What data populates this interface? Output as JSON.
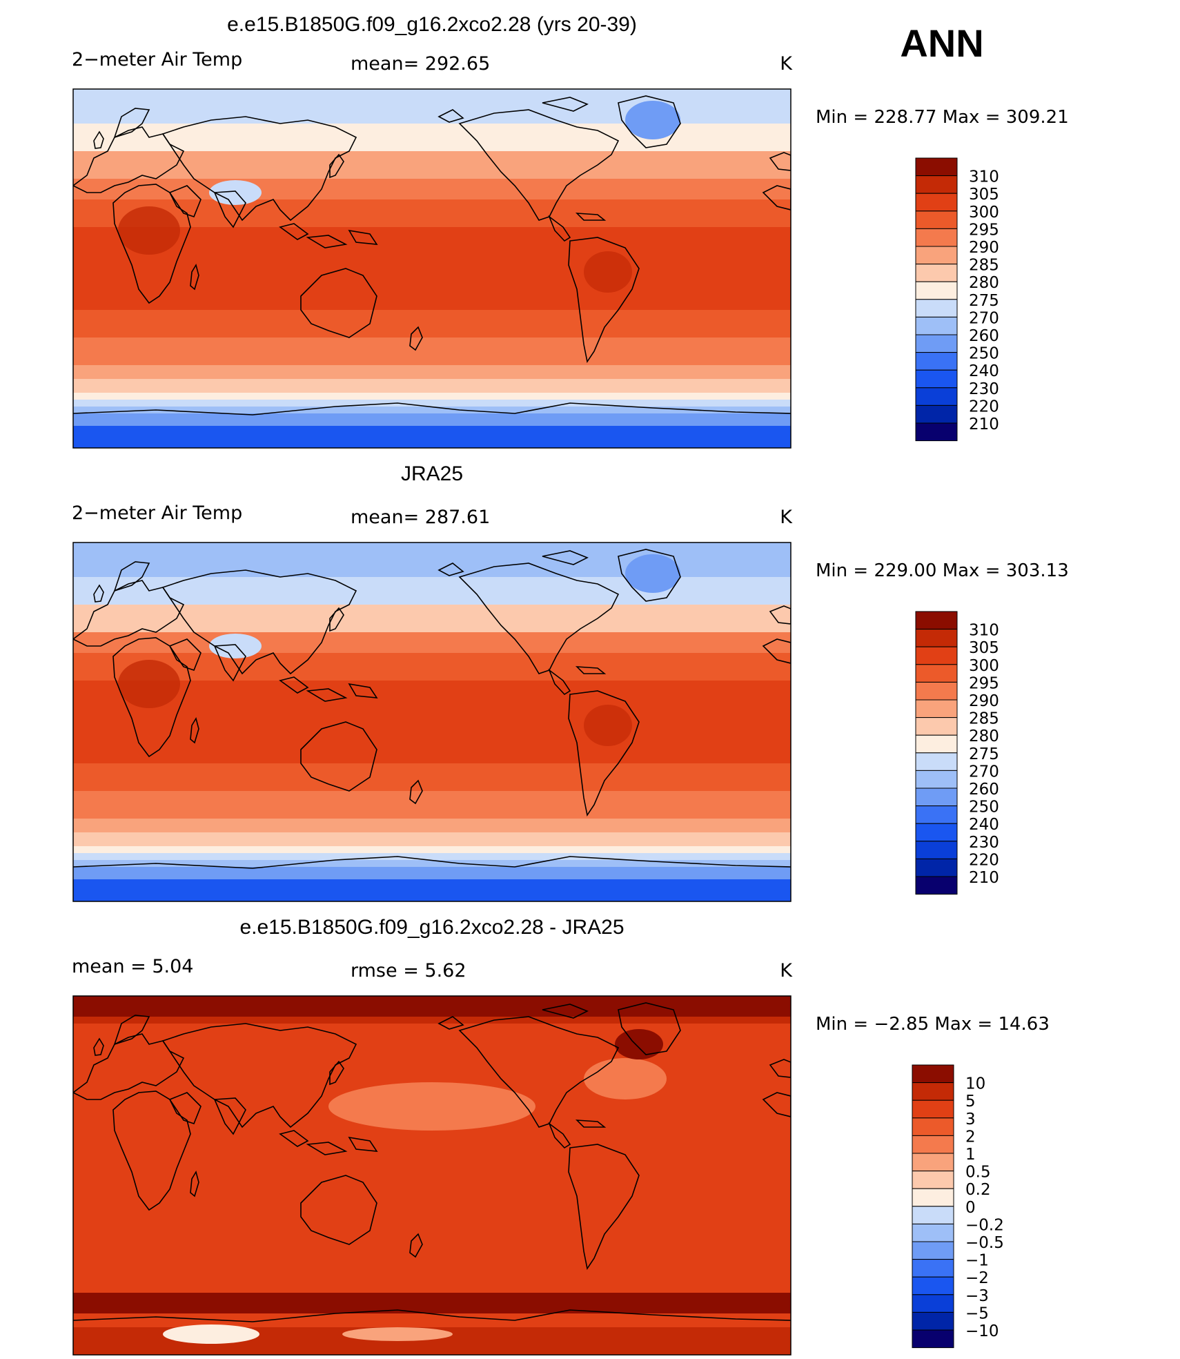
{
  "season": "ANN",
  "colors": {
    "temp_scale": [
      "#08006e",
      "#0025a8",
      "#0a3fd8",
      "#1a56f0",
      "#3a72f5",
      "#6f9cf5",
      "#9ebff7",
      "#c9dcf9",
      "#fdeee0",
      "#fcc9ad",
      "#f9a37c",
      "#f47a4d",
      "#ec5a2a",
      "#e14015",
      "#c42a06",
      "#8b0d00"
    ],
    "diff_scale": [
      "#08006e",
      "#0025a8",
      "#0a3fd8",
      "#1a56f0",
      "#3a72f5",
      "#6f9cf5",
      "#9ebff7",
      "#c9dcf9",
      "#fdeee0",
      "#fcc9ad",
      "#f9a37c",
      "#f47a4d",
      "#ec5a2a",
      "#e14015",
      "#c42a06",
      "#8b0d00"
    ],
    "coastline": "#000000"
  },
  "panels": [
    {
      "title": "e.e15.B1850G.f09_g16.2xco2.28 (yrs 20-39)",
      "left_label": "2−meter Air Temp",
      "mid_label": "mean= 292.65",
      "units": "K",
      "minmax": "Min  =  228.77  Max  =  309.21",
      "legend_labels": [
        "310",
        "305",
        "300",
        "295",
        "290",
        "285",
        "280",
        "275",
        "270",
        "260",
        "250",
        "240",
        "230",
        "220",
        "210"
      ]
    },
    {
      "title": "JRA25",
      "left_label": "2−meter Air Temp",
      "mid_label": "mean= 287.61",
      "units": "K",
      "minmax": "Min  =  229.00  Max  =  303.13",
      "legend_labels": [
        "310",
        "305",
        "300",
        "295",
        "290",
        "285",
        "280",
        "275",
        "270",
        "260",
        "250",
        "240",
        "230",
        "220",
        "210"
      ]
    },
    {
      "title": "e.e15.B1850G.f09_g16.2xco2.28 - JRA25",
      "left_label": "mean  =      5.04",
      "mid_label": "rmse  =      5.62",
      "units": "K",
      "minmax": "Min  =   −2.85  Max  =    14.63",
      "legend_labels": [
        "10",
        "5",
        "3",
        "2",
        "1",
        "0.5",
        "0.2",
        "0",
        "−0.2",
        "−0.5",
        "−1",
        "−2",
        "−3",
        "−5",
        "−10"
      ]
    }
  ]
}
